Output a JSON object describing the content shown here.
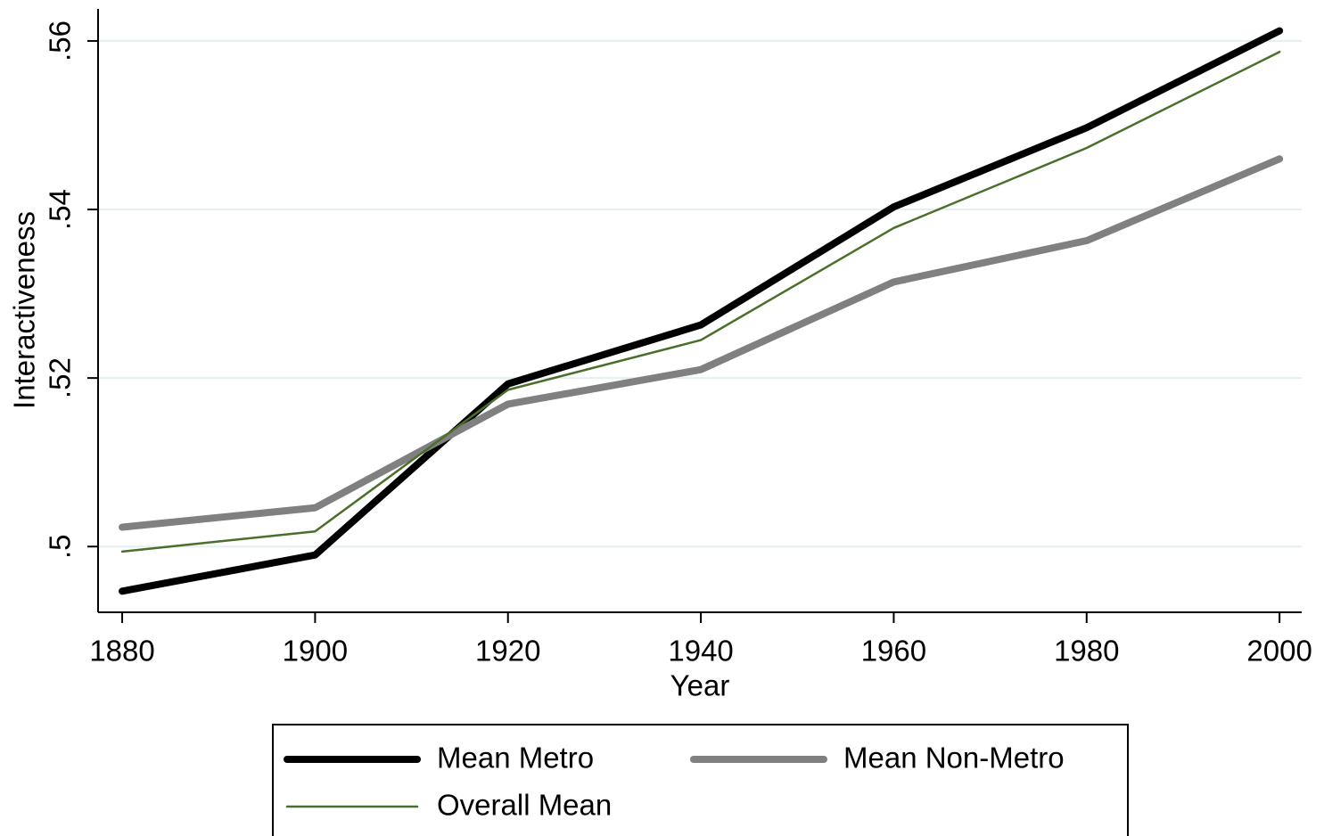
{
  "chart_data": {
    "type": "line",
    "x_label": "Year",
    "y_label": "Interactiveness",
    "x": [
      1880,
      1900,
      1920,
      1940,
      1960,
      1980,
      2000
    ],
    "series": [
      {
        "name": "Mean Metro",
        "color": "#000000",
        "values": [
          0.4947,
          0.499,
          0.5193,
          0.5263,
          0.5403,
          0.5497,
          0.5612
        ]
      },
      {
        "name": "Mean Non-Metro",
        "color": "#808080",
        "values": [
          0.5023,
          0.5046,
          0.5169,
          0.521,
          0.5314,
          0.5363,
          0.546
        ]
      },
      {
        "name": "Overall Mean",
        "color": "#4a6f2a",
        "values": [
          0.4994,
          0.5018,
          0.5186,
          0.5245,
          0.5378,
          0.5473,
          0.5587
        ]
      }
    ],
    "xlim": [
      1877.5,
      2002.3
    ],
    "xticks": [
      1880,
      1900,
      1920,
      1940,
      1960,
      1980,
      2000
    ],
    "ylim": [
      0.4922,
      0.5638
    ],
    "yticks": [
      {
        "value": 0.5,
        "label": ".5"
      },
      {
        "value": 0.52,
        "label": ".52"
      },
      {
        "value": 0.54,
        "label": ".54"
      },
      {
        "value": 0.56,
        "label": ".56"
      }
    ],
    "grid": true,
    "legend": "bottom"
  }
}
